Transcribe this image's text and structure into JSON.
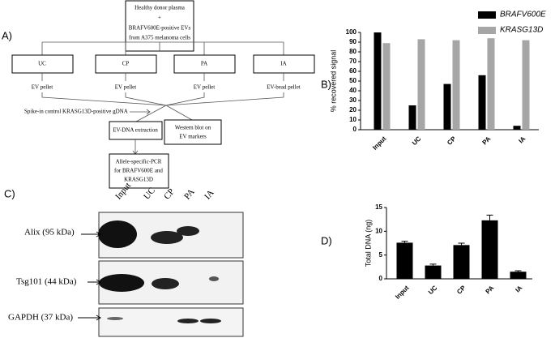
{
  "panel_labels": [
    "A)",
    "B)",
    "C)",
    "D)"
  ],
  "diagram": {
    "source": [
      "Healthy donor plasma",
      "+",
      "BRAFV600E-positive EVs",
      "from A375 melanoma cells"
    ],
    "methods": [
      {
        "label": "UC",
        "product": "EV pellet"
      },
      {
        "label": "CP",
        "product": "EV pellet"
      },
      {
        "label": "PA",
        "product": "EV pellet"
      },
      {
        "label": "IA",
        "product": "EV-bead pellet"
      }
    ],
    "spike_in": "Spike-in control KRASG13D-positive gDNA",
    "extraction": "EV-DNA extraction",
    "western": [
      "Western blot on",
      "EV markers"
    ],
    "pcr": [
      "Allele-specific-PCR",
      "for BRAFV600E and",
      "KRASG13D"
    ]
  },
  "blot": {
    "lanes": [
      "Input",
      "UC",
      "CP",
      "PA",
      "IA"
    ],
    "bands": [
      "Alix (95 kDa)",
      "Tsg101 (44 kDa)",
      "GAPDH (37 kDa)"
    ]
  },
  "chart_data": [
    {
      "type": "bar",
      "ylabel": "% recovered signal",
      "categories": [
        "Input",
        "UC",
        "CP",
        "PA",
        "IA"
      ],
      "series": [
        {
          "name": "BRAFV600E",
          "color": "#000000",
          "values": [
            100,
            25,
            47,
            56,
            4
          ]
        },
        {
          "name": "KRASG13D",
          "color": "#a6a6a6",
          "values": [
            89,
            93,
            92,
            94,
            92
          ]
        }
      ],
      "ylim": [
        0,
        100
      ],
      "yticks": [
        0,
        10,
        20,
        30,
        40,
        50,
        60,
        70,
        80,
        90,
        100
      ]
    },
    {
      "type": "bar",
      "ylabel": "Total DNA (ng)",
      "categories": [
        "Input",
        "UC",
        "CP",
        "PA",
        "IA"
      ],
      "values": [
        7.6,
        2.8,
        7.1,
        12.3,
        1.5
      ],
      "errors": [
        0.3,
        0.3,
        0.4,
        1.1,
        0.2
      ],
      "color": "#000000",
      "ylim": [
        0,
        15
      ],
      "yticks": [
        0,
        5,
        10,
        15
      ]
    }
  ]
}
